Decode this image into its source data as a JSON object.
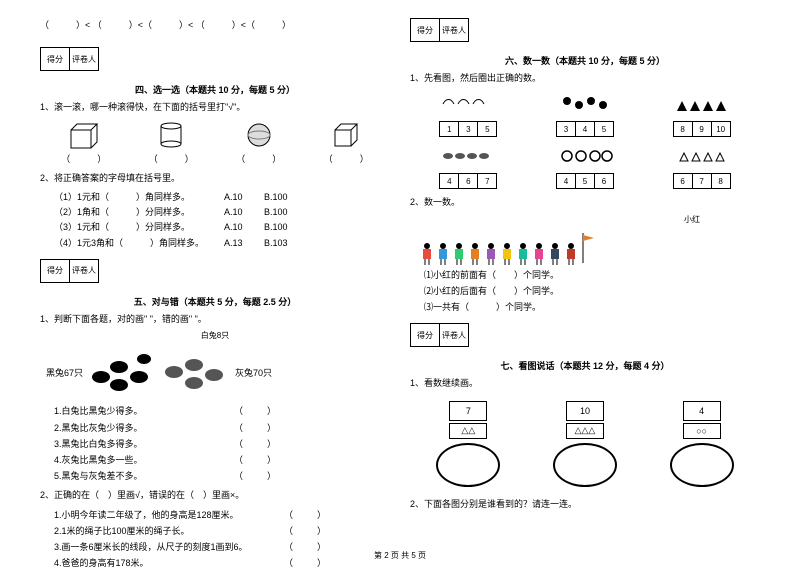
{
  "top_fill": "（　　　）< （　　　）<（　　　）< （　　　）<（　　　）",
  "score": {
    "a": "得分",
    "b": "评卷人"
  },
  "sec4": {
    "title": "四、选一选（本题共 10 分，每题 5 分）",
    "q1": "1、滚一滚，哪一种滚得快，在下面的括号里打\"√\"。",
    "shape_label": "（　　　）",
    "q2": "2、将正确答案的字母填在括号里。",
    "rows": [
      {
        "l": "（1）1元和（　　　）角同样多。",
        "a": "A.10",
        "b": "B.100"
      },
      {
        "l": "（2）1角和（　　　）分同样多。",
        "a": "A.10",
        "b": "B.100"
      },
      {
        "l": "（3）1元和（　　　）分同样多。",
        "a": "A.10",
        "b": "B.100"
      },
      {
        "l": "（4）1元3角和（　　　）角同样多。",
        "a": "A.13",
        "b": "B.103"
      }
    ]
  },
  "sec5": {
    "title": "五、对与错（本题共 5 分，每题 2.5 分）",
    "q1": "1、判断下面各题，对的画\" \"，错的画\" \"。",
    "black": "黑兔67只",
    "white": "白兔8只",
    "gray": "灰兔70只",
    "items": [
      "1.白兔比黑兔少得多。",
      "2.黑兔比灰兔少得多。",
      "3.黑兔比白兔多得多。",
      "4.灰兔比黑兔多一些。",
      "5.黑兔与灰兔差不多。"
    ],
    "q2": "2、正确的在（　）里画√，错误的在（　）里画×。",
    "items2": [
      "1.小明今年读二年级了，他的身高是128厘米。",
      "2.1米的绳子比100厘米的绳子长。",
      "3.画一条6厘米长的线段，从尺子的刻度1画到6。",
      "4.爸爸的身高有178米。"
    ],
    "paren": "（　　）"
  },
  "sec6": {
    "title": "六、数一数（本题共 10 分，每题 5 分）",
    "q1": "1、先看图，然后圈出正确的数。",
    "boxes": [
      [
        "1",
        "3",
        "5"
      ],
      [
        "3",
        "4",
        "5"
      ],
      [
        "8",
        "9",
        "10"
      ],
      [
        "4",
        "6",
        "7"
      ],
      [
        "4",
        "5",
        "6"
      ],
      [
        "6",
        "7",
        "8"
      ]
    ],
    "q2": "2、数一数。",
    "flag": "小红",
    "lines": [
      "⑴小红的前面有（　　）个同学。",
      "⑵小红的后面有（　　）个同学。",
      "⑶一共有（　　　）个同学。"
    ]
  },
  "sec7": {
    "title": "七、看图说话（本题共 12 分，每题 4 分）",
    "q1": "1、看数继续画。",
    "items": [
      {
        "n": "7",
        "s": "△△"
      },
      {
        "n": "10",
        "s": "△△△"
      },
      {
        "n": "4",
        "s": "○○"
      }
    ],
    "q2": "2、下面各图分别是谁看到的？请连一连。"
  },
  "footer": "第 2 页 共 5 页",
  "colors": {
    "kid": [
      "#e74c3c",
      "#3498db",
      "#2ecc71",
      "#e67e22",
      "#9b59b6",
      "#f1c40f",
      "#1abc9c",
      "#e84393",
      "#34495e",
      "#c0392b"
    ]
  }
}
